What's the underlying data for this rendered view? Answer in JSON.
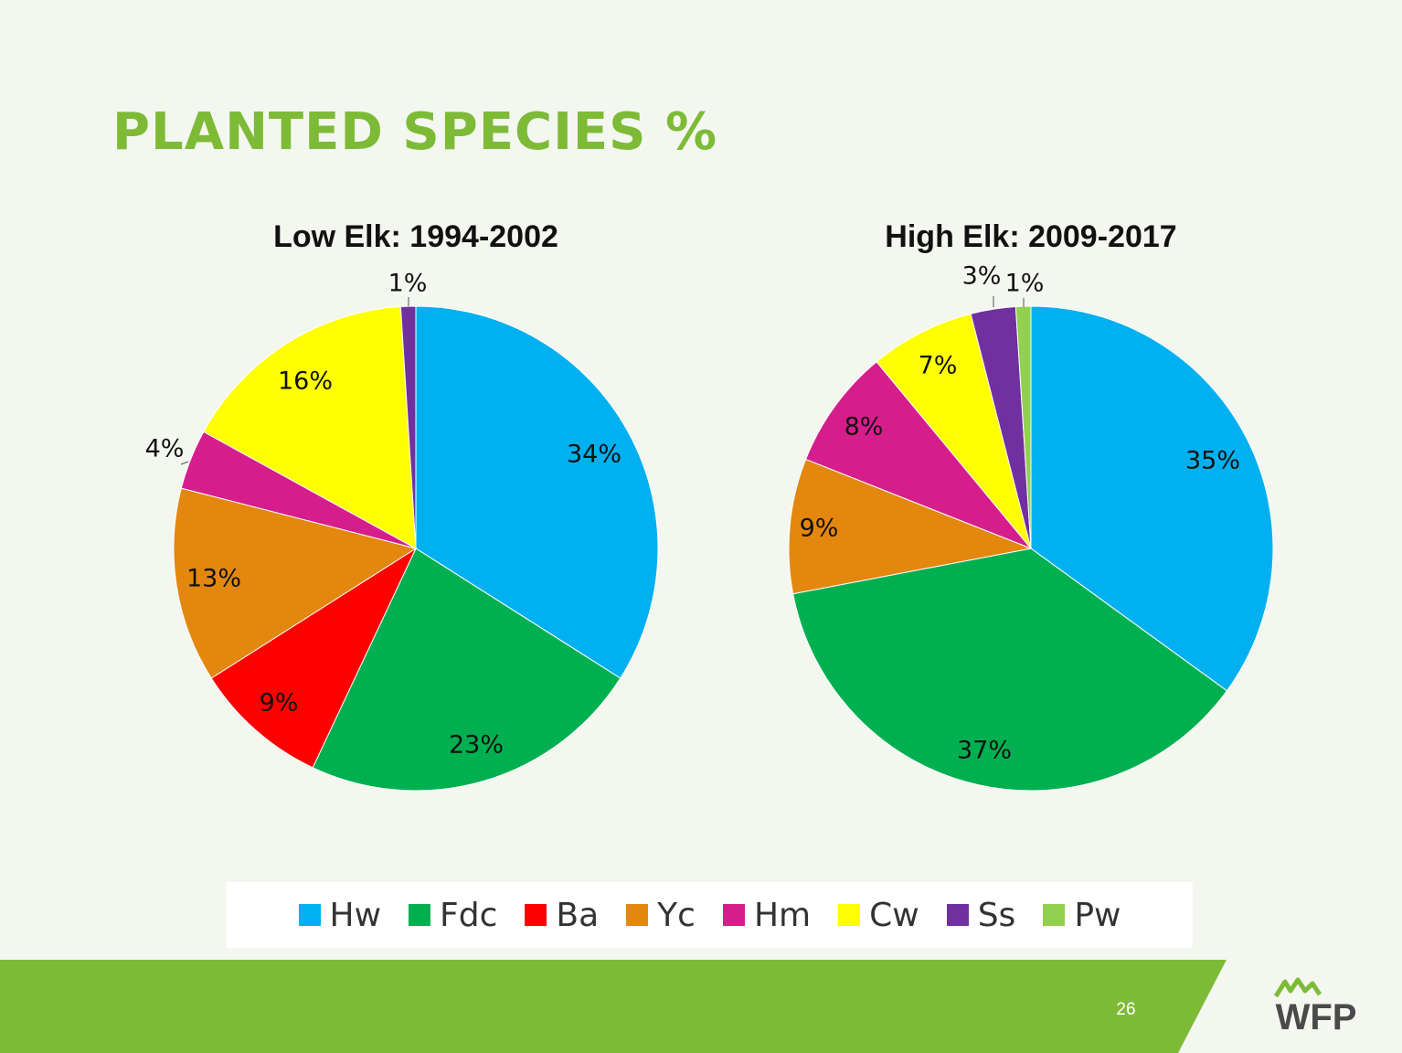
{
  "slide": {
    "title": "PLANTED SPECIES %",
    "page_number": "26",
    "logo_text": "WFP"
  },
  "colors": {
    "title_green": "#7dbb37",
    "footer_green": "#7dbb37",
    "background": "#f4f7ef"
  },
  "chart_data": [
    {
      "type": "pie",
      "title": "Low Elk: 1994-2002",
      "slices": [
        {
          "name": "Hw",
          "value": 34,
          "label": "34%",
          "color": "#00b0f0"
        },
        {
          "name": "Fdc",
          "value": 23,
          "label": "23%",
          "color": "#00b050"
        },
        {
          "name": "Ba",
          "value": 9,
          "label": "9%",
          "color": "#ff0000"
        },
        {
          "name": "Yc",
          "value": 13,
          "label": "13%",
          "color": "#e3870e"
        },
        {
          "name": "Hm",
          "value": 4,
          "label": "4%",
          "color": "#d61d8c"
        },
        {
          "name": "Cw",
          "value": 16,
          "label": "16%",
          "color": "#ffff00"
        },
        {
          "name": "Ss",
          "value": 1,
          "label": "1%",
          "color": "#7030a0"
        }
      ]
    },
    {
      "type": "pie",
      "title": "High Elk: 2009-2017",
      "slices": [
        {
          "name": "Hw",
          "value": 35,
          "label": "35%",
          "color": "#00b0f0"
        },
        {
          "name": "Fdc",
          "value": 37,
          "label": "37%",
          "color": "#00b050"
        },
        {
          "name": "Yc",
          "value": 9,
          "label": "9%",
          "color": "#e3870e"
        },
        {
          "name": "Hm",
          "value": 8,
          "label": "8%",
          "color": "#d61d8c"
        },
        {
          "name": "Cw",
          "value": 7,
          "label": "7%",
          "color": "#ffff00"
        },
        {
          "name": "Ss",
          "value": 3,
          "label": "3%",
          "color": "#7030a0"
        },
        {
          "name": "Pw",
          "value": 1,
          "label": "1%",
          "color": "#92d050"
        }
      ]
    }
  ],
  "legend": {
    "items": [
      {
        "name": "Hw",
        "color": "#00b0f0"
      },
      {
        "name": "Fdc",
        "color": "#00b050"
      },
      {
        "name": "Ba",
        "color": "#ff0000"
      },
      {
        "name": "Yc",
        "color": "#e3870e"
      },
      {
        "name": "Hm",
        "color": "#d61d8c"
      },
      {
        "name": "Cw",
        "color": "#ffff00"
      },
      {
        "name": "Ss",
        "color": "#7030a0"
      },
      {
        "name": "Pw",
        "color": "#92d050"
      }
    ]
  }
}
